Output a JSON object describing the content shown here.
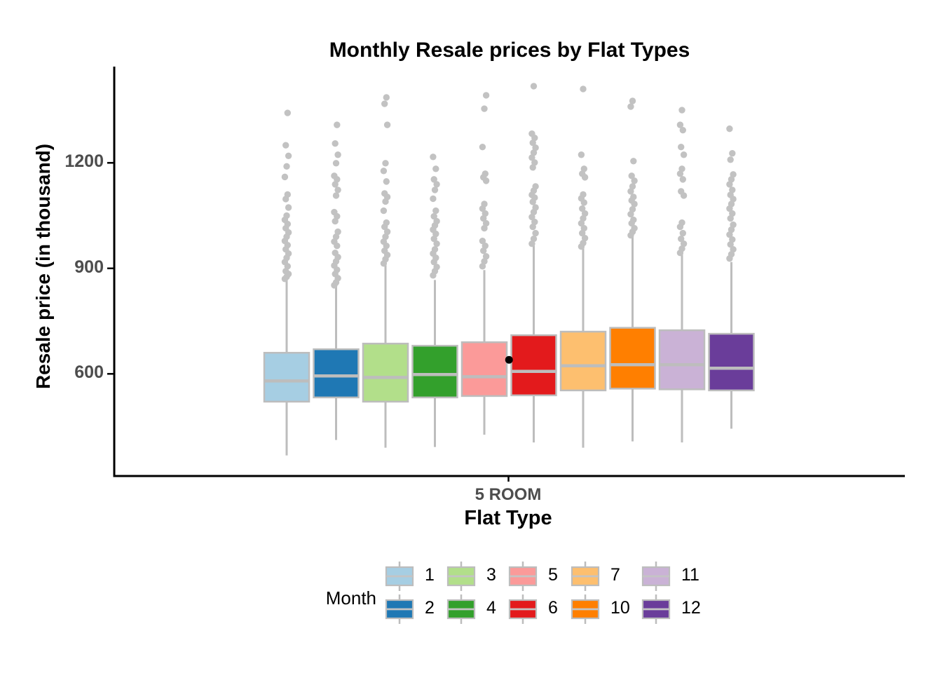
{
  "chart_data": {
    "type": "boxplot",
    "title": "Monthly Resale prices by Flat Types",
    "xlabel": "Flat Type",
    "ylabel": "Resale price (in thousand)",
    "x_category": "5 ROOM",
    "y_ticks": [
      600,
      900,
      1200
    ],
    "y_axis_range": [
      310,
      1470
    ],
    "grid": "off",
    "legend_title": "Month",
    "legend_position": "bottom",
    "legend_rows": [
      [
        "1",
        "3",
        "5",
        "7",
        "11"
      ],
      [
        "2",
        "4",
        "6",
        "10",
        "12"
      ]
    ],
    "style_colors": {
      "box_outline": "#BDBDBD",
      "median_line": "#C4C4C4",
      "whisker": "#BDBDBD",
      "outlier_dot": "#C2C2C2",
      "axis_line": "#000000",
      "axis_text": "#4D4D4D",
      "annotation_dot": "#000000"
    },
    "series": [
      {
        "month": "1",
        "color": "#A6CEE3",
        "q1": 521,
        "median": 580,
        "q3": 660,
        "whisker_low": 368,
        "whisker_high": 866,
        "outliers": [
          870,
          876,
          884,
          892,
          906,
          918,
          930,
          942,
          954,
          966,
          978,
          990,
          1002,
          1014,
          1026,
          1038,
          1050,
          1073,
          1097,
          1110,
          1160,
          1190,
          1220,
          1250,
          1342
        ]
      },
      {
        "month": "2",
        "color": "#1F78B4",
        "q1": 533,
        "median": 594,
        "q3": 670,
        "whisker_low": 412,
        "whisker_high": 848,
        "outliers": [
          852,
          860,
          872,
          884,
          896,
          908,
          920,
          932,
          944,
          964,
          976,
          990,
          1004,
          1034,
          1048,
          1060,
          1107,
          1123,
          1139,
          1153,
          1163,
          1199,
          1223,
          1255,
          1308
        ]
      },
      {
        "month": "3",
        "color": "#B2DF8A",
        "q1": 521,
        "median": 590,
        "q3": 686,
        "whisker_low": 390,
        "whisker_high": 909,
        "outliers": [
          914,
          926,
          938,
          950,
          964,
          976,
          990,
          1004,
          1018,
          1030,
          1064,
          1090,
          1103,
          1113,
          1147,
          1177,
          1199,
          1308,
          1368,
          1386
        ]
      },
      {
        "month": "4",
        "color": "#33A02C",
        "q1": 533,
        "median": 598,
        "q3": 680,
        "whisker_low": 392,
        "whisker_high": 867,
        "outliers": [
          880,
          892,
          904,
          918,
          930,
          942,
          954,
          970,
          984,
          998,
          1010,
          1022,
          1034,
          1048,
          1064,
          1098,
          1123,
          1139,
          1153,
          1183,
          1217
        ]
      },
      {
        "month": "5",
        "color": "#FB9A99",
        "q1": 537,
        "median": 592,
        "q3": 690,
        "whisker_low": 427,
        "whisker_high": 895,
        "outliers": [
          906,
          920,
          934,
          950,
          964,
          978,
          1014,
          1028,
          1042,
          1056,
          1070,
          1083,
          1149,
          1159,
          1169,
          1245,
          1354,
          1392
        ]
      },
      {
        "month": "6",
        "color": "#E31A1C",
        "q1": 539,
        "median": 607,
        "q3": 710,
        "whisker_low": 405,
        "whisker_high": 965,
        "outliers": [
          970,
          984,
          1000,
          1018,
          1032,
          1046,
          1060,
          1073,
          1089,
          1101,
          1109,
          1121,
          1133,
          1187,
          1201,
          1215,
          1229,
          1243,
          1257,
          1271,
          1283,
          1418
        ]
      },
      {
        "month": "7",
        "color": "#FDBF6F",
        "q1": 553,
        "median": 623,
        "q3": 720,
        "whisker_low": 390,
        "whisker_high": 958,
        "outliers": [
          962,
          972,
          986,
          1000,
          1014,
          1028,
          1042,
          1056,
          1070,
          1087,
          1099,
          1110,
          1159,
          1169,
          1183,
          1223,
          1410
        ]
      },
      {
        "month": "10",
        "color": "#FF7F00",
        "q1": 558,
        "median": 626,
        "q3": 731,
        "whisker_low": 408,
        "whisker_high": 990,
        "outliers": [
          994,
          1004,
          1014,
          1028,
          1038,
          1054,
          1068,
          1083,
          1093,
          1103,
          1119,
          1133,
          1149,
          1163,
          1205,
          1360,
          1376
        ]
      },
      {
        "month": "11",
        "color": "#CAB2D6",
        "q1": 556,
        "median": 626,
        "q3": 724,
        "whisker_low": 405,
        "whisker_high": 940,
        "outliers": [
          944,
          956,
          970,
          984,
          1000,
          1018,
          1030,
          1107,
          1119,
          1153,
          1169,
          1183,
          1223,
          1245,
          1293,
          1308,
          1350
        ]
      },
      {
        "month": "12",
        "color": "#6A3D9A",
        "q1": 553,
        "median": 616,
        "q3": 714,
        "whisker_low": 444,
        "whisker_high": 918,
        "outliers": [
          928,
          940,
          954,
          968,
          982,
          996,
          1010,
          1024,
          1042,
          1056,
          1070,
          1083,
          1097,
          1109,
          1123,
          1139,
          1153,
          1167,
          1209,
          1227,
          1297
        ]
      }
    ],
    "annotation_point": {
      "value": 640,
      "between_months": [
        "5",
        "6"
      ]
    }
  }
}
